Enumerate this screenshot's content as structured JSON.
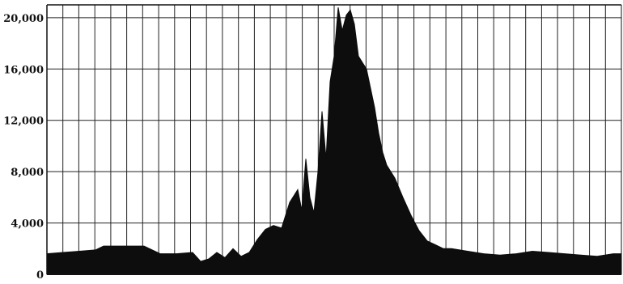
{
  "chart_data": {
    "type": "area",
    "title": "",
    "xlabel": "",
    "ylabel": "",
    "ylim": [
      0,
      21000
    ],
    "yticks": [
      0,
      4000,
      8000,
      12000,
      16000,
      20000
    ],
    "ytick_labels": [
      "0",
      "4,000",
      "8,000",
      "12,000",
      "16,000",
      "20,000"
    ],
    "xlim": [
      0,
      71
    ],
    "x_gridlines": 36,
    "grid": true,
    "fill_color": "#0d0d0d",
    "grid_color": "#222222",
    "series": [
      {
        "x": [
          0,
          2,
          4,
          6,
          7,
          8,
          10,
          12,
          14,
          16,
          18,
          19,
          20,
          21,
          22,
          23,
          24,
          25,
          26,
          27,
          28,
          29,
          30,
          31,
          31.5,
          32,
          32.5,
          33,
          33.5,
          34,
          34.5,
          35,
          35.5,
          36,
          36.5,
          37,
          37.5,
          38,
          38.5,
          39,
          39.5,
          40,
          40.5,
          41,
          41.5,
          42,
          43,
          44,
          45,
          46,
          47,
          48,
          49,
          50,
          52,
          54,
          56,
          58,
          60,
          62,
          64,
          66,
          68,
          70,
          71
        ],
        "y": [
          1600,
          1700,
          1800,
          1900,
          2200,
          2200,
          2200,
          2200,
          1600,
          1600,
          1700,
          1000,
          1200,
          1700,
          1300,
          2000,
          1400,
          1700,
          2700,
          3500,
          3800,
          3600,
          5600,
          6600,
          5000,
          9000,
          6000,
          4800,
          8000,
          12700,
          9000,
          15000,
          17000,
          20800,
          19000,
          20200,
          20600,
          19500,
          17000,
          16500,
          16000,
          14500,
          13000,
          11000,
          9500,
          8500,
          7500,
          6000,
          4600,
          3400,
          2600,
          2300,
          2000,
          2000,
          1800,
          1600,
          1500,
          1600,
          1800,
          1700,
          1600,
          1500,
          1400,
          1600,
          1600
        ]
      }
    ]
  }
}
